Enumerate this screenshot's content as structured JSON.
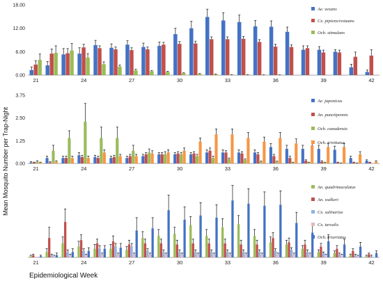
{
  "ylabel": "Mean Mosquito Number per Trap-Night",
  "xlabel": "Epidemiological Week",
  "chart_data": [
    {
      "type": "bar",
      "x": [
        21,
        22,
        23,
        24,
        25,
        26,
        27,
        28,
        29,
        30,
        31,
        32,
        33,
        34,
        35,
        36,
        37,
        38,
        39,
        40,
        41,
        42
      ],
      "x_tick_labels": [
        "21",
        "24",
        "27",
        "30",
        "33",
        "36",
        "39",
        "42"
      ],
      "ylim": [
        0,
        18
      ],
      "y_ticks": [
        "0.00",
        "6.00",
        "12.00",
        "18.00"
      ],
      "legend_position": "top-right",
      "series": [
        {
          "name": "Ae. vexans",
          "color": "#4472C4",
          "values": [
            1.3,
            2.5,
            5.3,
            5.5,
            7.7,
            7.0,
            7.8,
            7.2,
            7.5,
            10.5,
            12.0,
            14.9,
            14.0,
            13.6,
            12.5,
            12.4,
            11.1,
            6.5,
            6.5,
            6.0,
            2.0,
            0.8
          ],
          "errors": [
            0.8,
            1.0,
            1.5,
            1.5,
            1.2,
            1.0,
            1.0,
            1.0,
            1.0,
            1.5,
            1.8,
            2.0,
            2.0,
            1.8,
            1.5,
            1.5,
            1.2,
            1.0,
            0.8,
            0.5,
            0.8,
            0.5
          ]
        },
        {
          "name": "Cx. pipiens/restuans",
          "color": "#C0504D",
          "values": [
            2.7,
            5.5,
            5.6,
            7.1,
            6.9,
            6.6,
            6.4,
            6.6,
            7.8,
            8.0,
            8.1,
            9.2,
            9.2,
            9.3,
            8.5,
            7.3,
            7.2,
            6.9,
            5.8,
            5.8,
            4.7,
            5.0
          ],
          "errors": [
            1.0,
            1.2,
            1.2,
            0.8,
            0.6,
            0.6,
            0.6,
            0.6,
            0.6,
            0.6,
            0.6,
            0.6,
            0.6,
            0.6,
            0.6,
            0.6,
            0.6,
            0.6,
            0.6,
            0.6,
            1.2,
            1.5
          ]
        },
        {
          "name": "Och. stimulans",
          "color": "#9BBB59",
          "values": [
            3.9,
            5.7,
            6.3,
            4.5,
            2.8,
            2.2,
            1.2,
            1.0,
            0.8,
            0.5,
            0.3,
            0.2,
            0.1,
            0.1,
            0.05,
            0.05,
            0,
            0,
            0,
            0,
            0,
            0
          ],
          "errors": [
            1.5,
            1.8,
            1.8,
            1.0,
            0.6,
            0.4,
            0.3,
            0.2,
            0.2,
            0.1,
            0.1,
            0.1,
            0.05,
            0.05,
            0.02,
            0.02,
            0,
            0,
            0,
            0,
            0,
            0
          ]
        }
      ]
    },
    {
      "type": "bar",
      "x": [
        21,
        22,
        23,
        24,
        25,
        26,
        27,
        28,
        29,
        30,
        31,
        32,
        33,
        34,
        35,
        36,
        37,
        38,
        39,
        40,
        41,
        42
      ],
      "x_tick_labels": [
        "21",
        "24",
        "27",
        "30",
        "33",
        "36",
        "39",
        "42"
      ],
      "ylim": [
        0,
        3.75
      ],
      "y_ticks": [
        "0.00",
        "1.25",
        "2.50",
        "3.75"
      ],
      "legend_position": "top-right",
      "series": [
        {
          "name": "Ae. japonicus",
          "color": "#4472C4",
          "values": [
            0.05,
            0.3,
            0.3,
            0.45,
            0.35,
            0.3,
            0.3,
            0.4,
            0.5,
            0.5,
            0.5,
            0.6,
            0.6,
            0.6,
            0.6,
            0.9,
            0.8,
            0.8,
            0.8,
            0.75,
            0.3,
            0.15
          ],
          "errors": [
            0.05,
            0.1,
            0.1,
            0.15,
            0.1,
            0.1,
            0.1,
            0.1,
            0.1,
            0.1,
            0.1,
            0.15,
            0.15,
            0.15,
            0.15,
            0.2,
            0.2,
            0.2,
            0.2,
            0.2,
            0.1,
            0.05
          ]
        },
        {
          "name": "An. punctipennis",
          "color": "#C0504D",
          "values": [
            0.05,
            0.05,
            0.3,
            0.35,
            0.3,
            0.35,
            0.4,
            0.5,
            0.5,
            0.55,
            0.55,
            0.7,
            0.6,
            0.55,
            0.5,
            0.4,
            0.3,
            0.15,
            0.1,
            0.05,
            0.05,
            0.05
          ],
          "errors": [
            0.02,
            0.05,
            0.1,
            0.1,
            0.1,
            0.1,
            0.1,
            0.1,
            0.1,
            0.1,
            0.1,
            0.15,
            0.1,
            0.1,
            0.1,
            0.1,
            0.1,
            0.05,
            0.05,
            0.02,
            0.02,
            0.02
          ],
          "note": ""
        },
        {
          "name": "Och. canadensis",
          "color": "#9BBB59",
          "values": [
            0.1,
            0.7,
            1.4,
            2.3,
            1.4,
            1.4,
            0.7,
            0.6,
            0.5,
            0.5,
            0.4,
            0.3,
            0.25,
            0.2,
            0.1,
            0.1,
            0.05,
            0.05,
            0.05,
            0.02,
            0.02,
            0
          ],
          "errors": [
            0.05,
            0.3,
            0.4,
            1.0,
            0.6,
            0.6,
            0.3,
            0.2,
            0.15,
            0.1,
            0.1,
            0.1,
            0.05,
            0.05,
            0.03,
            0.03,
            0.02,
            0.02,
            0.02,
            0.01,
            0.01,
            0
          ]
        },
        {
          "name": "Och. trivittatus",
          "color": "#F79646",
          "values": [
            0.05,
            0.1,
            0.3,
            0.3,
            0.6,
            0.4,
            0.4,
            0.55,
            0.6,
            0.7,
            1.2,
            1.6,
            1.6,
            1.4,
            1.2,
            1.4,
            1.1,
            1.0,
            0.9,
            0.9,
            0.5,
            0.1
          ],
          "errors": [
            0.02,
            0.05,
            0.1,
            0.1,
            0.15,
            0.1,
            0.1,
            0.15,
            0.15,
            0.15,
            0.2,
            0.3,
            0.3,
            0.3,
            0.25,
            0.3,
            0.25,
            0.25,
            0.2,
            0.2,
            0.15,
            0.05
          ]
        }
      ]
    },
    {
      "type": "bar",
      "x": [
        21,
        22,
        23,
        24,
        25,
        26,
        27,
        28,
        29,
        30,
        31,
        32,
        33,
        34,
        35,
        36,
        37,
        38,
        39,
        40,
        41,
        42
      ],
      "x_tick_labels": [
        "21",
        "24",
        "27",
        "30",
        "33",
        "36",
        "39",
        "42"
      ],
      "ylim": [
        0,
        0.7
      ],
      "y_ticks": [],
      "legend_position": "top-right",
      "series": [
        {
          "name": "An. quadrimaculatus",
          "color": "#9BBB59",
          "values": [
            0.01,
            0.05,
            0.13,
            0.1,
            0.08,
            0.08,
            0.07,
            0.18,
            0.2,
            0.22,
            0.3,
            0.2,
            0.28,
            0.31,
            0.2,
            0.14,
            0.12,
            0.08,
            0.05,
            0.04,
            0.02,
            0.01
          ],
          "errors": [
            0.01,
            0.03,
            0.06,
            0.05,
            0.04,
            0.04,
            0.03,
            0.06,
            0.06,
            0.06,
            0.08,
            0.06,
            0.08,
            0.08,
            0.06,
            0.05,
            0.04,
            0.03,
            0.02,
            0.02,
            0.01,
            0.01
          ]
        },
        {
          "name": "An. walkeri",
          "color": "#C0504D",
          "values": [
            0.02,
            0.18,
            0.33,
            0.16,
            0.13,
            0.15,
            0.12,
            0.13,
            0.13,
            0.12,
            0.13,
            0.13,
            0.13,
            0.12,
            0.12,
            0.18,
            0.14,
            0.12,
            0.1,
            0.08,
            0.06,
            0.03
          ],
          "errors": [
            0.01,
            0.1,
            0.12,
            0.05,
            0.04,
            0.05,
            0.04,
            0.04,
            0.04,
            0.04,
            0.04,
            0.04,
            0.04,
            0.04,
            0.04,
            0.05,
            0.04,
            0.04,
            0.03,
            0.03,
            0.02,
            0.01
          ]
        },
        {
          "name": "Cx. salinarius",
          "color": "#8EB4E3",
          "values": [
            0,
            0.02,
            0.05,
            0.06,
            0.08,
            0.1,
            0.1,
            0.06,
            0.05,
            0.05,
            0.05,
            0.05,
            0.05,
            0.05,
            0.05,
            0.06,
            0.07,
            0.05,
            0.04,
            0.03,
            0.02,
            0.01
          ],
          "errors": [
            0,
            0.01,
            0.02,
            0.02,
            0.03,
            0.03,
            0.03,
            0.02,
            0.02,
            0.02,
            0.02,
            0.02,
            0.02,
            0.02,
            0.02,
            0.02,
            0.02,
            0.02,
            0.01,
            0.01,
            0.01,
            0.01
          ]
        },
        {
          "name": "Cx. tarsalis",
          "color": "#E6B9B8",
          "values": [
            0,
            0.01,
            0.02,
            0.02,
            0.03,
            0.03,
            0.03,
            0.03,
            0.03,
            0.03,
            0.03,
            0.03,
            0.03,
            0.03,
            0.03,
            0.03,
            0.03,
            0.03,
            0.02,
            0.02,
            0.01,
            0
          ],
          "errors": [
            0,
            0.01,
            0.01,
            0.01,
            0.01,
            0.01,
            0.01,
            0.01,
            0.01,
            0.01,
            0.01,
            0.01,
            0.01,
            0.01,
            0.01,
            0.01,
            0.01,
            0.01,
            0.01,
            0.01,
            0.01,
            0
          ]
        },
        {
          "name": "Och. triseriatus",
          "color": "#4472C4",
          "values": [
            0.01,
            0.02,
            0.05,
            0.06,
            0.08,
            0.09,
            0.25,
            0.27,
            0.44,
            0.35,
            0.39,
            0.37,
            0.53,
            0.5,
            0.48,
            0.49,
            0.32,
            0.23,
            0.15,
            0.12,
            0.1,
            0.04
          ],
          "errors": [
            0.01,
            0.02,
            0.03,
            0.03,
            0.03,
            0.04,
            0.12,
            0.1,
            0.14,
            0.12,
            0.12,
            0.12,
            0.14,
            0.14,
            0.13,
            0.13,
            0.1,
            0.08,
            0.06,
            0.05,
            0.04,
            0.02
          ]
        }
      ]
    }
  ]
}
